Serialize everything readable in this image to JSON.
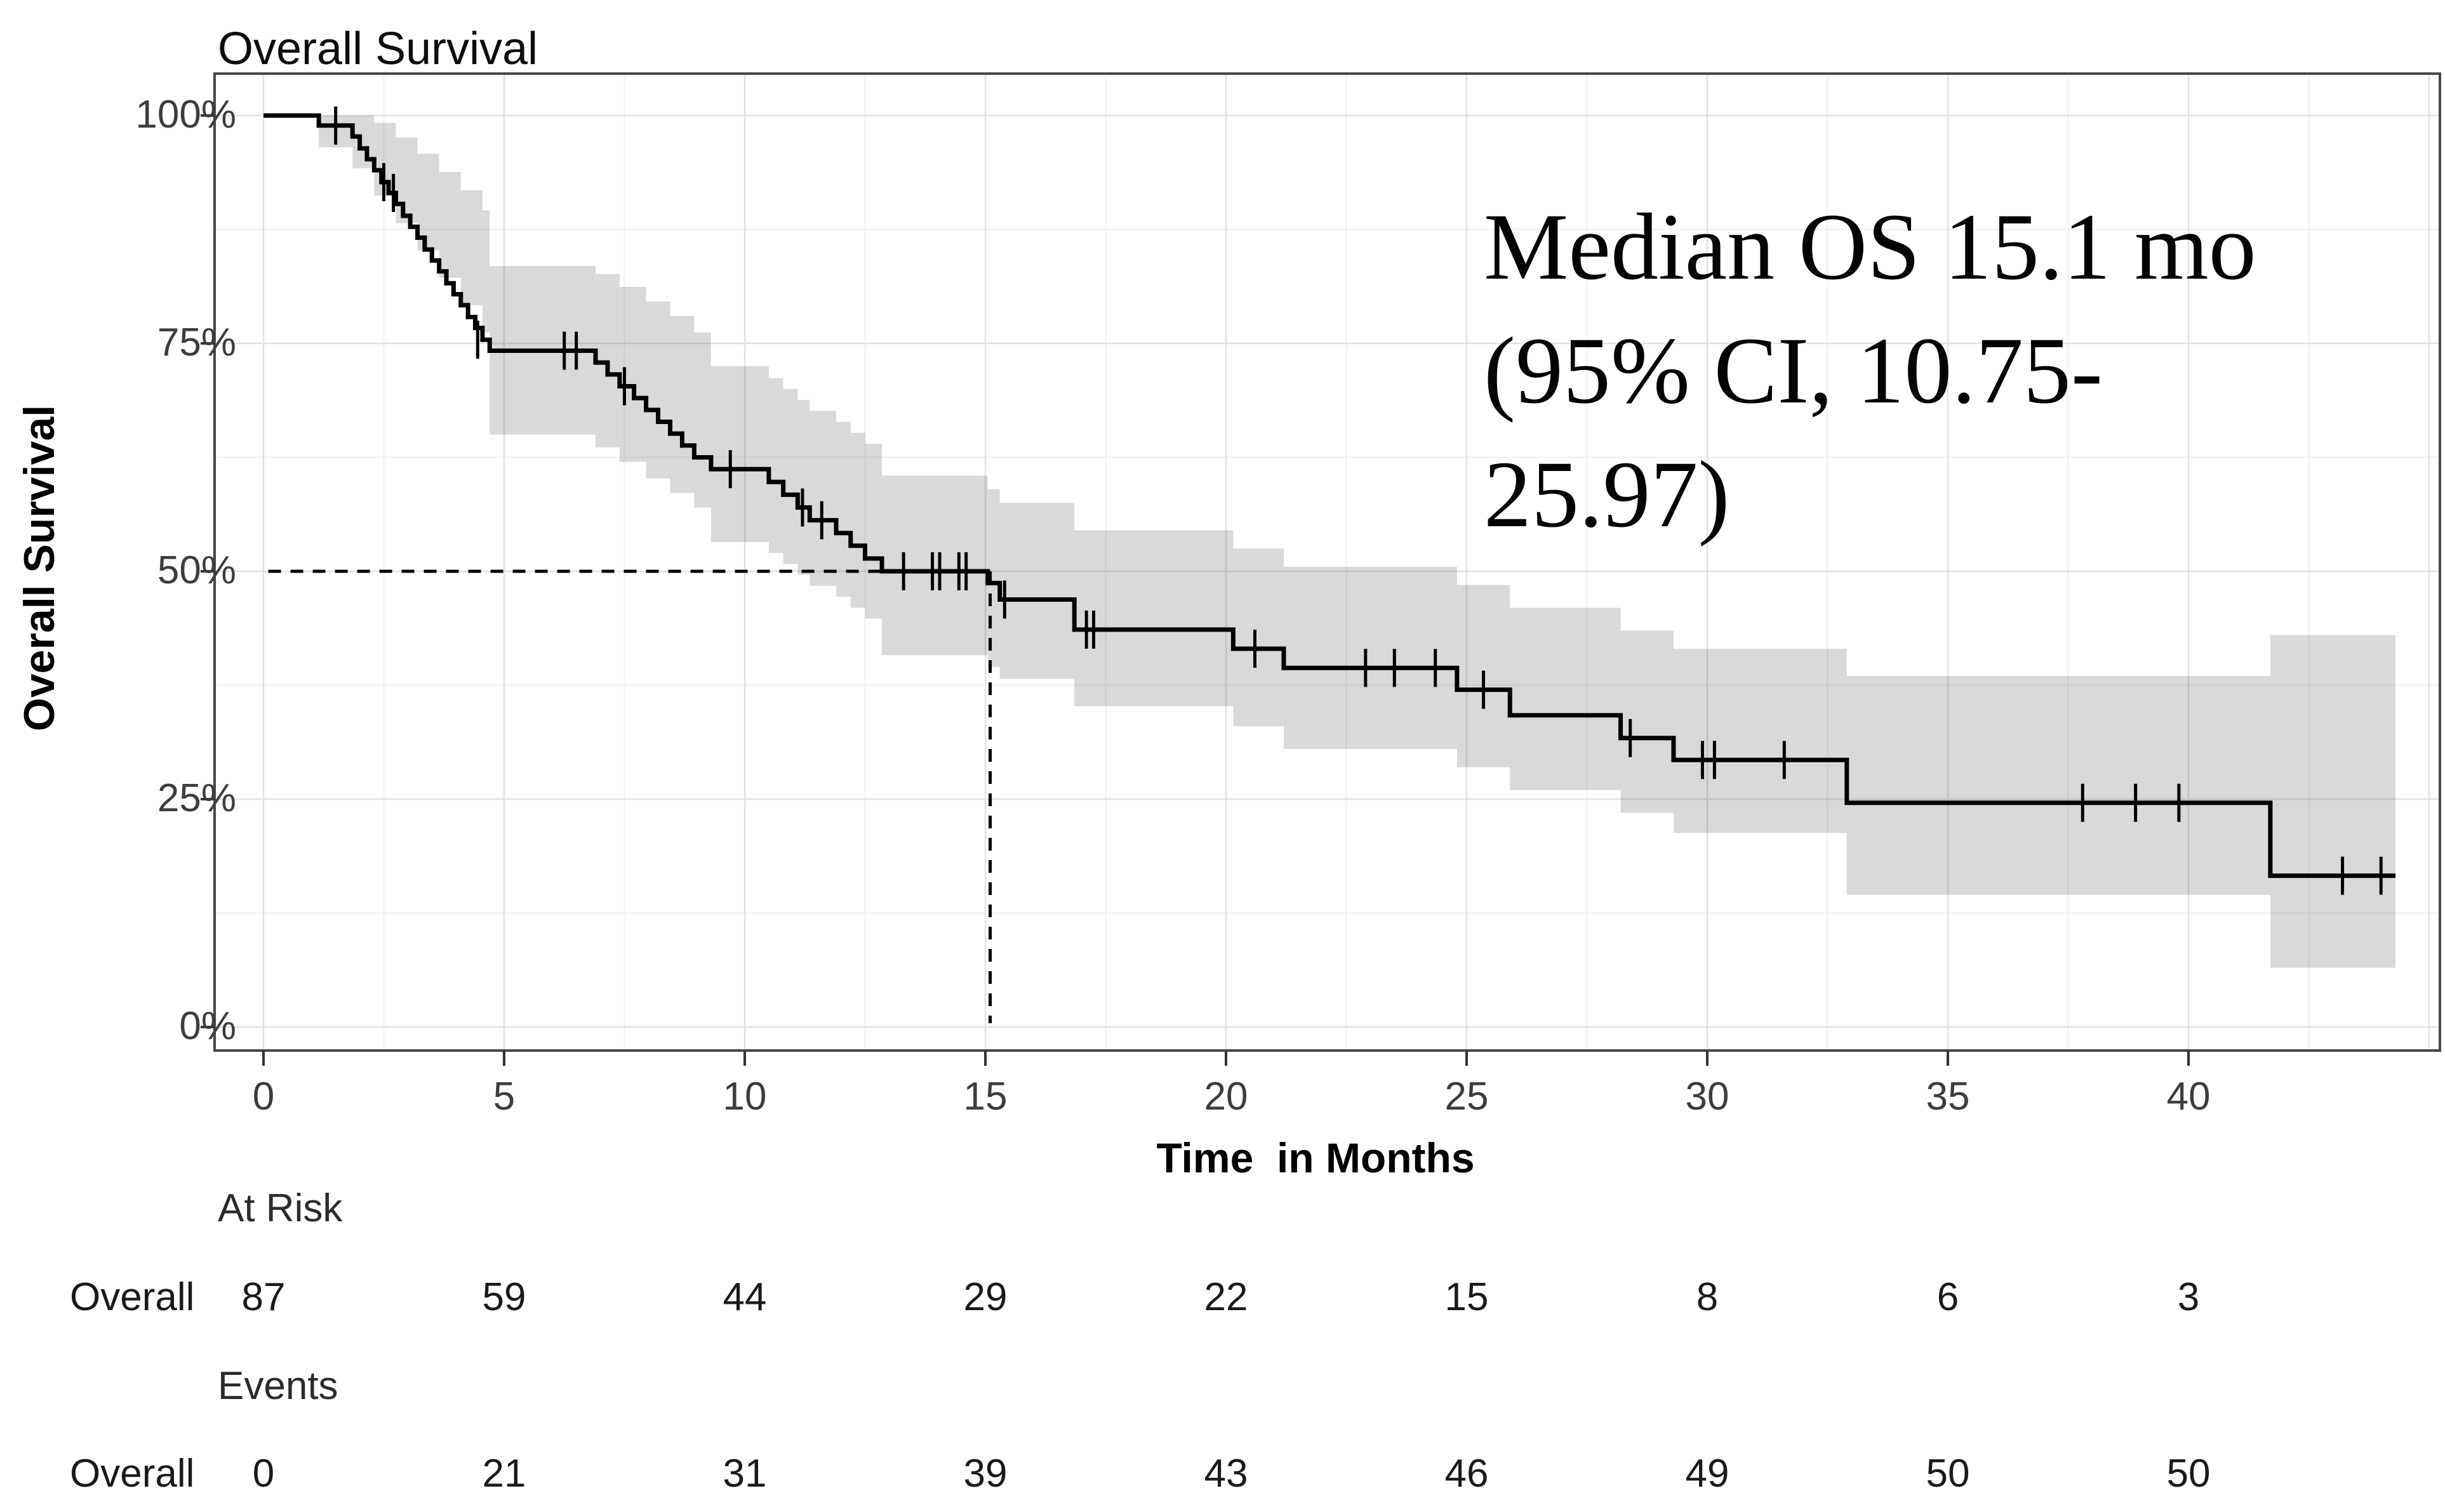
{
  "page": {
    "title": "Overall Survival"
  },
  "annotation": {
    "lines": [
      "Median OS 15.1 mo",
      "(95% CI, 10.75-",
      "25.97)"
    ]
  },
  "chart_data": {
    "type": "line",
    "subtype": "kaplan_meier_step_with_ci",
    "title": "Overall Survival",
    "xlabel": "Time  in Months",
    "ylabel": "Overall Survival",
    "legend_position": "none",
    "grid": "on",
    "xlim": [
      -1,
      45.4
    ],
    "ylim": [
      0,
      100
    ],
    "x_ticks": [
      0,
      5,
      10,
      15,
      20,
      25,
      30,
      35,
      40
    ],
    "x_major_gridlines": [
      0,
      5,
      10,
      15,
      20,
      25,
      30,
      35,
      40,
      45
    ],
    "x_minor_gridlines": [
      2.5,
      7.5,
      12.5,
      17.5,
      22.5,
      27.5,
      32.5,
      37.5,
      42.5
    ],
    "y_ticks": [
      {
        "label": "100%",
        "value": 100
      },
      {
        "label": "75%",
        "value": 75
      },
      {
        "label": "50%",
        "value": 50
      },
      {
        "label": "25%",
        "value": 25
      },
      {
        "label": "0%",
        "value": 0
      }
    ],
    "y_minor_gridlines": [
      87.5,
      62.5,
      37.5,
      12.5
    ],
    "curve_color": "#000000",
    "ci_fill_color": "rgba(0,0,0,0.15)",
    "median": {
      "time_months": 15.1,
      "survival_pct": 50,
      "h_line_start_time": 0.1,
      "h_line_end_time": 12.85
    },
    "curve_end_time": 44.3,
    "survival_steps": [
      [
        0,
        100
      ],
      [
        1.15,
        98.9
      ],
      [
        1.85,
        97.7
      ],
      [
        2.0,
        96.4
      ],
      [
        2.15,
        95.2
      ],
      [
        2.3,
        94.0
      ],
      [
        2.45,
        92.7
      ],
      [
        2.6,
        91.5
      ],
      [
        2.75,
        90.3
      ],
      [
        2.9,
        89.0
      ],
      [
        3.05,
        87.8
      ],
      [
        3.2,
        86.6
      ],
      [
        3.35,
        85.3
      ],
      [
        3.5,
        84.1
      ],
      [
        3.65,
        82.9
      ],
      [
        3.8,
        81.6
      ],
      [
        3.95,
        80.4
      ],
      [
        4.1,
        79.2
      ],
      [
        4.25,
        77.9
      ],
      [
        4.4,
        76.7
      ],
      [
        4.55,
        75.4
      ],
      [
        4.7,
        74.2
      ],
      [
        6.9,
        72.9
      ],
      [
        7.15,
        71.6
      ],
      [
        7.4,
        70.3
      ],
      [
        7.7,
        69.0
      ],
      [
        7.95,
        67.7
      ],
      [
        8.2,
        66.4
      ],
      [
        8.45,
        65.1
      ],
      [
        8.7,
        63.8
      ],
      [
        8.95,
        62.5
      ],
      [
        9.3,
        61.2
      ],
      [
        10.5,
        59.8
      ],
      [
        10.8,
        58.4
      ],
      [
        11.1,
        57.0
      ],
      [
        11.35,
        55.6
      ],
      [
        11.9,
        54.2
      ],
      [
        12.2,
        52.8
      ],
      [
        12.5,
        51.4
      ],
      [
        12.85,
        50.0
      ],
      [
        15.05,
        48.7
      ],
      [
        15.3,
        46.9
      ],
      [
        16.85,
        43.6
      ],
      [
        20.15,
        41.5
      ],
      [
        21.2,
        39.4
      ],
      [
        24.8,
        37.0
      ],
      [
        25.9,
        34.2
      ],
      [
        28.2,
        31.7
      ],
      [
        29.3,
        29.3
      ],
      [
        32.9,
        24.6
      ],
      [
        41.7,
        16.6
      ]
    ],
    "censor_marks": [
      [
        1.5,
        98.9
      ],
      [
        2.5,
        92.7
      ],
      [
        2.7,
        91.5
      ],
      [
        4.45,
        75.4
      ],
      [
        6.25,
        74.2
      ],
      [
        6.5,
        74.2
      ],
      [
        7.5,
        70.3
      ],
      [
        9.7,
        61.2
      ],
      [
        11.2,
        57.0
      ],
      [
        11.6,
        55.6
      ],
      [
        13.3,
        50.0
      ],
      [
        13.9,
        50.0
      ],
      [
        14.05,
        50.0
      ],
      [
        14.45,
        50.0
      ],
      [
        14.6,
        50.0
      ],
      [
        15.4,
        46.9
      ],
      [
        17.1,
        43.6
      ],
      [
        17.25,
        43.6
      ],
      [
        20.6,
        41.5
      ],
      [
        22.9,
        39.4
      ],
      [
        23.5,
        39.4
      ],
      [
        24.35,
        39.4
      ],
      [
        25.35,
        37.0
      ],
      [
        28.4,
        31.7
      ],
      [
        29.9,
        29.3
      ],
      [
        30.15,
        29.3
      ],
      [
        31.6,
        29.3
      ],
      [
        37.8,
        24.6
      ],
      [
        38.9,
        24.6
      ],
      [
        39.8,
        24.6
      ],
      [
        43.2,
        16.6
      ],
      [
        44.0,
        16.6
      ]
    ],
    "ci_band": [
      [
        0,
        100,
        100
      ],
      [
        1.15,
        100,
        96.5
      ],
      [
        1.85,
        100,
        94.2
      ],
      [
        2.3,
        99.2,
        91.2
      ],
      [
        2.75,
        97.6,
        88.2
      ],
      [
        3.2,
        95.8,
        85.2
      ],
      [
        3.65,
        93.8,
        82.2
      ],
      [
        4.1,
        91.8,
        79.2
      ],
      [
        4.55,
        89.6,
        76.2
      ],
      [
        4.7,
        83.5,
        65.0
      ],
      [
        6.9,
        82.6,
        63.6
      ],
      [
        7.4,
        81.2,
        62.0
      ],
      [
        7.95,
        79.6,
        60.2
      ],
      [
        8.45,
        78.0,
        58.6
      ],
      [
        8.95,
        76.2,
        57.0
      ],
      [
        9.3,
        72.5,
        53.2
      ],
      [
        10.5,
        71.2,
        52.0
      ],
      [
        10.8,
        70.0,
        50.8
      ],
      [
        11.1,
        68.8,
        49.6
      ],
      [
        11.35,
        67.6,
        48.4
      ],
      [
        11.9,
        66.4,
        47.2
      ],
      [
        12.2,
        65.2,
        46.0
      ],
      [
        12.5,
        64.0,
        44.8
      ],
      [
        12.85,
        60.5,
        40.8
      ],
      [
        15.05,
        59.0,
        39.5
      ],
      [
        15.3,
        57.5,
        38.2
      ],
      [
        16.85,
        54.5,
        35.2
      ],
      [
        20.15,
        52.5,
        33.0
      ],
      [
        21.2,
        50.5,
        30.5
      ],
      [
        24.8,
        48.5,
        28.5
      ],
      [
        25.9,
        46.0,
        26.0
      ],
      [
        28.2,
        43.5,
        23.5
      ],
      [
        29.3,
        41.5,
        21.3
      ],
      [
        32.9,
        38.5,
        14.5
      ],
      [
        41.7,
        43.0,
        6.5
      ]
    ]
  },
  "risk_table": {
    "at_risk_header": "At Risk",
    "events_header": "Events",
    "row_label": "Overall",
    "times": [
      0,
      5,
      10,
      15,
      20,
      25,
      30,
      35,
      40
    ],
    "at_risk": [
      87,
      59,
      44,
      29,
      22,
      15,
      8,
      6,
      3
    ],
    "events": [
      0,
      21,
      31,
      39,
      43,
      46,
      49,
      50,
      50
    ]
  }
}
